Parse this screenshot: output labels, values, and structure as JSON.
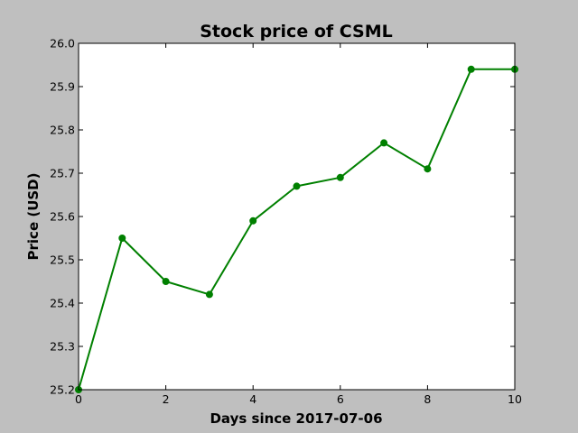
{
  "chart_data": {
    "type": "line",
    "title": "Stock price of CSML",
    "xlabel": "Days since 2017-07-06",
    "ylabel": "Price (USD)",
    "xlim": [
      0,
      10
    ],
    "ylim": [
      25.2,
      26.0
    ],
    "xticks": [
      "0",
      "2",
      "4",
      "6",
      "8",
      "10"
    ],
    "yticks": [
      "25.2",
      "25.3",
      "25.4",
      "25.5",
      "25.6",
      "25.7",
      "25.8",
      "25.9",
      "26.0"
    ],
    "grid": false,
    "legend": "none",
    "series": [
      {
        "color": "#008000",
        "marker": "circle",
        "x": [
          0,
          1,
          2,
          3,
          4,
          5,
          6,
          7,
          8,
          9,
          10
        ],
        "y": [
          25.2,
          25.55,
          25.45,
          25.42,
          25.59,
          25.67,
          25.69,
          25.77,
          25.71,
          25.94,
          25.94
        ]
      }
    ]
  },
  "colors": {
    "figure_background": "#bfbfbf",
    "plot_background": "#ffffff",
    "line": "#008000"
  }
}
